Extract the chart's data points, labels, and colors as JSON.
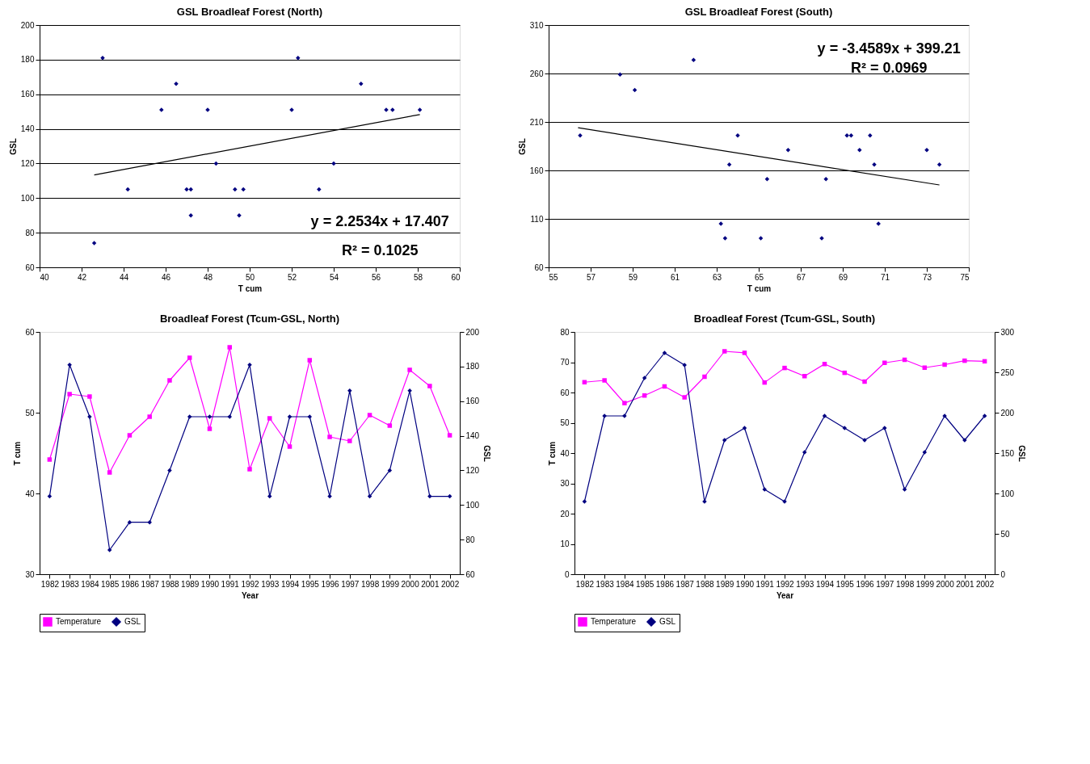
{
  "chart_data": [
    {
      "type": "scatter",
      "title": "GSL Broadleaf Forest (North)",
      "xlabel": "T cum",
      "ylabel": "GSL",
      "xlim": [
        40,
        60
      ],
      "xticks": [
        40,
        42,
        44,
        46,
        48,
        50,
        52,
        54,
        56,
        58,
        60
      ],
      "ylim": [
        60,
        200
      ],
      "yticks": [
        60,
        80,
        100,
        120,
        140,
        160,
        180,
        200
      ],
      "grid": "y",
      "series": [
        {
          "color": "#000080",
          "marker": "diamond",
          "x": [
            44.2,
            52.3,
            52.0,
            42.6,
            47.2,
            49.5,
            54.0,
            56.8,
            48.0,
            58.1,
            43.0,
            49.3,
            45.8,
            56.5,
            47.0,
            46.5,
            49.7,
            48.4,
            55.3,
            53.3,
            47.2
          ],
          "values": [
            105,
            181,
            151,
            74,
            90,
            90,
            120,
            151,
            151,
            151,
            181,
            105,
            151,
            151,
            105,
            166,
            105,
            120,
            166,
            105,
            105
          ]
        },
        {
          "type": "line",
          "color": "#000000",
          "x": [
            42.6,
            58.1
          ],
          "values": [
            113.4,
            148.3
          ]
        }
      ],
      "annotations": [
        "y = 2.2534x + 17.407",
        "R² = 0.1025"
      ]
    },
    {
      "type": "scatter",
      "title": "GSL Broadleaf Forest (South)",
      "xlabel": "T cum",
      "ylabel": "GSL",
      "xlim": [
        55,
        75
      ],
      "xticks": [
        55,
        57,
        59,
        61,
        63,
        65,
        67,
        69,
        71,
        73,
        75
      ],
      "ylim": [
        60,
        310
      ],
      "yticks": [
        60,
        110,
        160,
        210,
        260,
        310
      ],
      "grid": "y",
      "series": [
        {
          "color": "#000080",
          "marker": "diamond",
          "x": [
            63.4,
            64.0,
            56.5,
            59.1,
            61.9,
            58.4,
            65.1,
            73.6,
            73.0,
            63.2,
            68.0,
            65.4,
            69.4,
            66.4,
            63.6,
            69.8,
            70.7,
            68.2,
            69.2,
            70.5,
            70.3
          ],
          "values": [
            90,
            196,
            196,
            243,
            274,
            259,
            90,
            166,
            181,
            105,
            90,
            151,
            196,
            181,
            166,
            181,
            105,
            151,
            196,
            166,
            196
          ]
        },
        {
          "type": "line",
          "color": "#000000",
          "x": [
            56.4,
            73.6
          ],
          "values": [
            204,
            145
          ]
        }
      ],
      "annotations": [
        "y = -3.4589x + 399.21",
        "R² = 0.0969"
      ]
    },
    {
      "type": "line",
      "title": "Broadleaf Forest (Tcum-GSL, North)",
      "xlabel": "Year",
      "ylabel": "T cum",
      "y2label": "GSL",
      "ylim": [
        30,
        60
      ],
      "yticks": [
        30,
        40,
        50,
        60
      ],
      "y2lim": [
        60,
        200
      ],
      "y2ticks": [
        60,
        80,
        100,
        120,
        140,
        160,
        180,
        200
      ],
      "legend": "bottom",
      "categories": [
        "1982",
        "1983",
        "1984",
        "1985",
        "1986",
        "1987",
        "1988",
        "1989",
        "1990",
        "1991",
        "1992",
        "1993",
        "1994",
        "1995",
        "1996",
        "1997",
        "1998",
        "1999",
        "2000",
        "2001",
        "2002"
      ],
      "series": [
        {
          "name": "Temperature",
          "color": "#ff00ff",
          "marker": "square",
          "values": [
            44.2,
            52.3,
            52.0,
            42.6,
            47.2,
            49.5,
            54.0,
            56.8,
            48.0,
            58.1,
            43.0,
            49.3,
            45.8,
            56.5,
            47.0,
            46.5,
            49.7,
            48.4,
            55.3,
            53.3,
            47.2
          ]
        },
        {
          "name": "GSL",
          "color": "#000080",
          "marker": "diamond",
          "axis": "y2",
          "values": [
            105,
            181,
            151,
            74,
            90,
            90,
            120,
            151,
            151,
            151,
            181,
            105,
            151,
            151,
            105,
            166,
            105,
            120,
            166,
            105,
            105
          ]
        }
      ]
    },
    {
      "type": "line",
      "title": "Broadleaf Forest (Tcum-GSL, South)",
      "xlabel": "Year",
      "ylabel": "T cum",
      "y2label": "GSL",
      "ylim": [
        0,
        80
      ],
      "yticks": [
        0,
        10,
        20,
        30,
        40,
        50,
        60,
        70,
        80
      ],
      "y2lim": [
        0,
        300
      ],
      "y2ticks": [
        0,
        50,
        100,
        150,
        200,
        250,
        300
      ],
      "legend": "bottom",
      "categories": [
        "1982",
        "1983",
        "1984",
        "1985",
        "1986",
        "1987",
        "1988",
        "1989",
        "1990",
        "1991",
        "1992",
        "1993",
        "1994",
        "1995",
        "1996",
        "1997",
        "1998",
        "1999",
        "2000",
        "2001",
        "2002"
      ],
      "series": [
        {
          "name": "Temperature",
          "color": "#ff00ff",
          "marker": "square",
          "values": [
            63.4,
            64.0,
            56.5,
            59.0,
            62.0,
            58.4,
            65.2,
            73.6,
            73.1,
            63.3,
            68.1,
            65.4,
            69.4,
            66.5,
            63.6,
            69.8,
            70.8,
            68.2,
            69.2,
            70.5,
            70.3
          ]
        },
        {
          "name": "GSL",
          "color": "#000080",
          "marker": "diamond",
          "axis": "y2",
          "values": [
            90,
            196,
            196,
            243,
            274,
            259,
            90,
            166,
            181,
            105,
            90,
            151,
            196,
            181,
            166,
            181,
            105,
            151,
            196,
            166,
            196
          ]
        }
      ]
    }
  ]
}
